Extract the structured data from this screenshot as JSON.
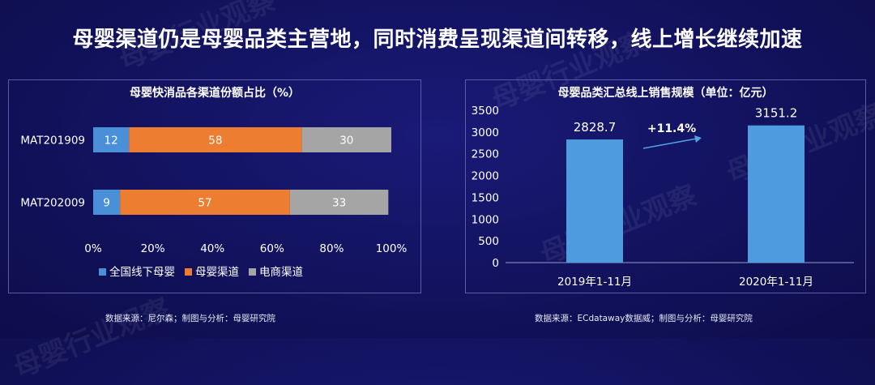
{
  "title": "母婴渠道仍是母婴品类主营地，同时消费呈现渠道间转移，线上增长继续加速",
  "watermark": "母婴行业观察",
  "colors": {
    "background": "#13135f",
    "series_blue": "#4a90d9",
    "series_orange": "#ed7d31",
    "series_gray": "#a5a5a5",
    "bar_blue": "#4f9be0",
    "arrow": "#4ea3e0"
  },
  "chart_data": [
    {
      "type": "bar",
      "orientation": "horizontal",
      "stacked": true,
      "title": "母婴快消品各渠道份额占比（%）",
      "categories": [
        "MAT201909",
        "MAT202009"
      ],
      "series": [
        {
          "name": "全国线下母婴",
          "values": [
            12,
            9
          ]
        },
        {
          "name": "母婴渠道",
          "values": [
            58,
            57
          ]
        },
        {
          "name": "电商渠道",
          "values": [
            30,
            33
          ]
        }
      ],
      "xlim": [
        0,
        100
      ],
      "x_ticks": [
        "0%",
        "20%",
        "40%",
        "60%",
        "80%",
        "100%"
      ],
      "legend": "bottom",
      "grid": false
    },
    {
      "type": "bar",
      "title": "母婴品类汇总线上销售规模（单位：亿元）",
      "categories": [
        "2019年1-11月",
        "2020年1-11月"
      ],
      "values": [
        2828.7,
        3151.2
      ],
      "value_labels": [
        "2828.7",
        "3151.2"
      ],
      "ylim": [
        0,
        3500
      ],
      "y_ticks": [
        "0",
        "500",
        "1000",
        "1500",
        "2000",
        "2500",
        "3000",
        "3500"
      ],
      "annotation": "+11.4%",
      "grid": false
    }
  ],
  "sources": {
    "left": "数据来源：尼尔森；制图与分析：母婴研究院",
    "right": "数据来源：ECdataway数据威；制图与分析：母婴研究院"
  }
}
